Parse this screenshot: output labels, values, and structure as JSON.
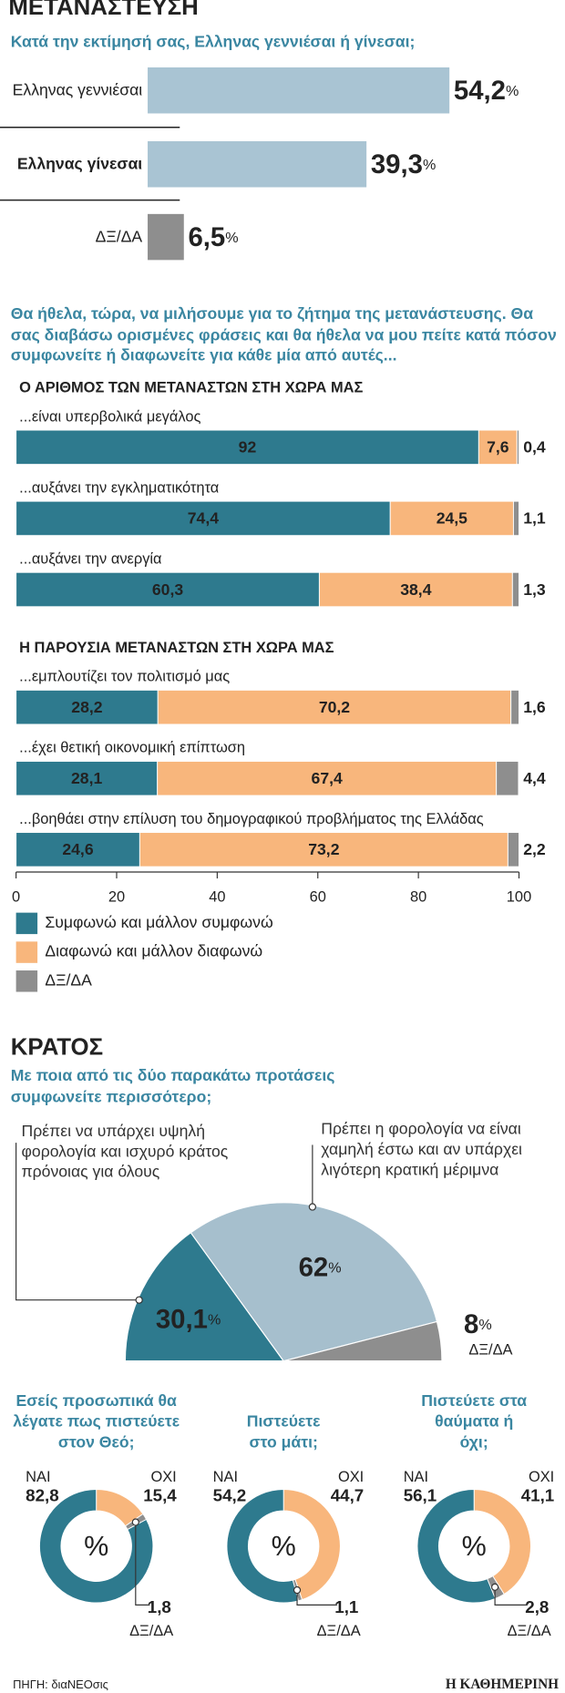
{
  "sections": [
    "ΜΕΤΑΝΑΣΤΕΥΣΗ",
    "ΚΡΑΤΟΣ"
  ],
  "chart_data": [
    {
      "type": "bar",
      "title": "Κατά την εκτίμησή σας, Ελληνας γεννιέσαι ή γίνεσαι;",
      "categories": [
        "Ελληνας γεννιέσαι",
        "Ελληνας γίνεσαι",
        "ΔΞ/ΔΑ"
      ],
      "values": [
        54.2,
        39.3,
        6.5
      ],
      "value_labels": [
        "54,2%",
        "39,3%",
        "6,5%"
      ],
      "colors": [
        "#a9c4d3",
        "#a9c4d3",
        "#8e8e8e"
      ],
      "value_label_colors": [
        "#3f88a3",
        "#3f88a3",
        "#9a9a9a"
      ]
    },
    {
      "type": "stacked_bar",
      "title": "Θα ήθελα, τώρα, να μιλήσουμε για το ζήτημα της μετανάστευσης. Θα σας διαβάσω ορισμένες φράσεις και θα ήθελα να μου πείτε κατά πόσον συμφωνείτε ή διαφωνείτε για κάθε μία από αυτές...",
      "group_titles": [
        "Ο ΑΡΙΘΜΟΣ ΤΩΝ ΜΕΤΑΝΑΣΤΩΝ ΣΤΗ ΧΩΡΑ ΜΑΣ",
        "Η ΠΑΡΟΥΣΙΑ ΜΕΤΑΝΑΣΤΩΝ ΣΤΗ ΧΩΡΑ ΜΑΣ"
      ],
      "categories": [
        "...είναι υπερβολικά μεγάλος",
        "...αυξάνει την εγκληματικότητα",
        "...αυξάνει την ανεργία",
        "...εμπλουτίζει τον πολιτισμό μας",
        "...έχει θετική οικονομική επίπτωση",
        "...βοηθάει στην επίλυση του δημογραφικού προβλήματος της Ελλάδας"
      ],
      "series": [
        {
          "name": "Συμφωνώ και μάλλον συμφωνώ",
          "color": "#2e7a8e",
          "values": [
            92,
            74.4,
            60.3,
            28.2,
            28.1,
            24.6
          ],
          "value_labels": [
            "92",
            "74,4",
            "60,3",
            "28,2",
            "28,1",
            "24,6"
          ]
        },
        {
          "name": "Διαφωνώ και μάλλον διαφωνώ",
          "color": "#f8b67c",
          "values": [
            7.6,
            24.5,
            38.4,
            70.2,
            67.4,
            73.2
          ],
          "value_labels": [
            "7,6",
            "24,5",
            "38,4",
            "70,2",
            "67,4",
            "73,2"
          ]
        },
        {
          "name": "ΔΞ/ΔΑ",
          "color": "#8e8e8e",
          "values": [
            0.4,
            1.1,
            1.3,
            1.6,
            4.4,
            2.2
          ],
          "value_labels": [
            "0,4",
            "1,1",
            "1,3",
            "1,6",
            "4,4",
            "2,2"
          ]
        }
      ],
      "xlim": [
        0,
        100
      ],
      "xticks": [
        0,
        20,
        40,
        60,
        80,
        100
      ]
    },
    {
      "type": "half_pie",
      "title": "Με ποια από τις δύο παρακάτω προτάσεις συμφωνείτε περισσότερο;",
      "categories": [
        "Πρέπει να υπάρχει υψηλή φορολογία και ισχυρό κράτος πρόνοιας για όλους",
        "Πρέπει η φορολογία να είναι χαμηλή έστω και αν υπάρχει λιγότερη κρατική μέριμνα",
        "ΔΞ/ΔΑ"
      ],
      "values": [
        30.1,
        62,
        8
      ],
      "value_labels": [
        "30,1%",
        "62%",
        "8%"
      ],
      "colors": [
        "#2e7a8e",
        "#a6bfcd",
        "#8e8e8e"
      ]
    },
    {
      "type": "donut",
      "title": "Εσείς προσωπικά θα λέγατε πως πιστεύετε στον Θεό;",
      "center_label": "%",
      "categories": [
        "ΝΑΙ",
        "ΟΧΙ",
        "ΔΞ/ΔΑ"
      ],
      "values": [
        82.8,
        15.4,
        1.8
      ],
      "value_labels": [
        "82,8",
        "15,4",
        "1,8"
      ],
      "colors": [
        "#2e7a8e",
        "#f8b67c",
        "#8e8e8e"
      ],
      "value_label_colors": [
        "#2e7a8e",
        "#e0892b",
        "#8e8e8e"
      ]
    },
    {
      "type": "donut",
      "title": "Πιστεύετε στο μάτι;",
      "center_label": "%",
      "categories": [
        "ΝΑΙ",
        "ΟΧΙ",
        "ΔΞ/ΔΑ"
      ],
      "values": [
        54.2,
        44.7,
        1.1
      ],
      "value_labels": [
        "54,2",
        "44,7",
        "1,1"
      ],
      "colors": [
        "#2e7a8e",
        "#f8b67c",
        "#8e8e8e"
      ],
      "value_label_colors": [
        "#2e7a8e",
        "#e0892b",
        "#8e8e8e"
      ]
    },
    {
      "type": "donut",
      "title": "Πιστεύετε στα θαύματα ή όχι;",
      "center_label": "%",
      "categories": [
        "ΝΑΙ",
        "ΟΧΙ",
        "ΔΞ/ΔΑ"
      ],
      "values": [
        56.1,
        41.1,
        2.8
      ],
      "value_labels": [
        "56,1",
        "41,1",
        "2,8"
      ],
      "colors": [
        "#2e7a8e",
        "#f8b67c",
        "#8e8e8e"
      ],
      "value_label_colors": [
        "#2e7a8e",
        "#e0892b",
        "#8e8e8e"
      ]
    }
  ],
  "source": "ΠΗΓΗ: διαΝΕΟσις",
  "publisher": "Η ΚΑΘΗΜΕΡΙΝΗ"
}
